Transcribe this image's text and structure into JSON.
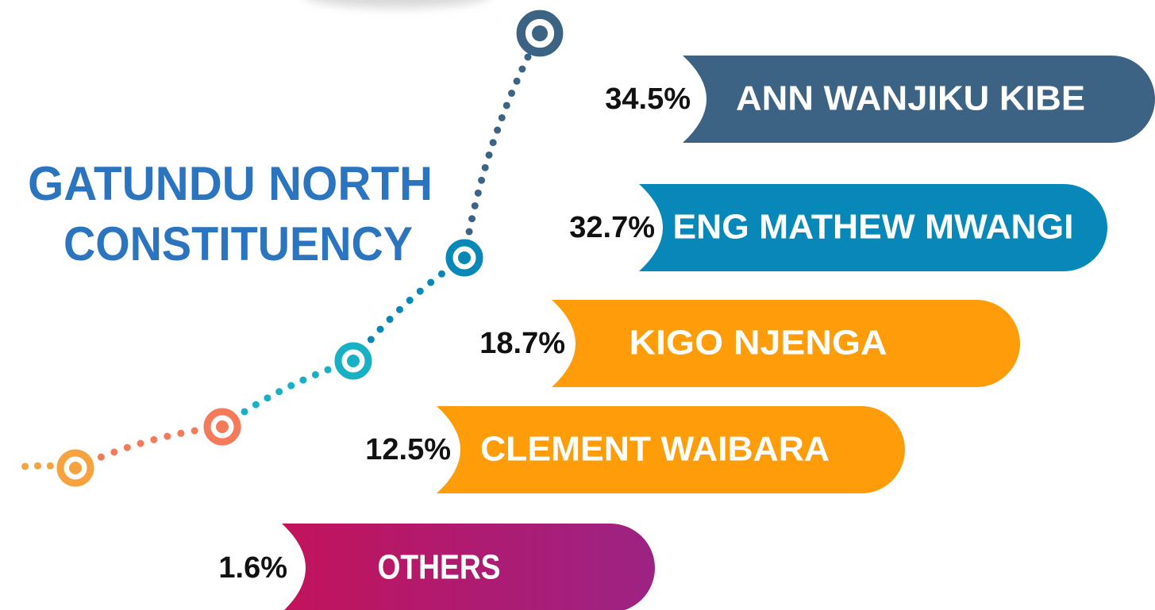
{
  "title": {
    "line1": "GATUNDU NORTH",
    "line2": "CONSTITUENCY"
  },
  "items": [
    {
      "percent": "34.5%",
      "name": "ANN WANJIKU KIBE"
    },
    {
      "percent": "32.7%",
      "name": "ENG MATHEW MWANGI"
    },
    {
      "percent": "18.7%",
      "name": "KIGO NJENGA"
    },
    {
      "percent": "12.5%",
      "name": "CLEMENT WAIBARA"
    },
    {
      "percent": "1.6%",
      "name": "OTHERS"
    }
  ]
}
